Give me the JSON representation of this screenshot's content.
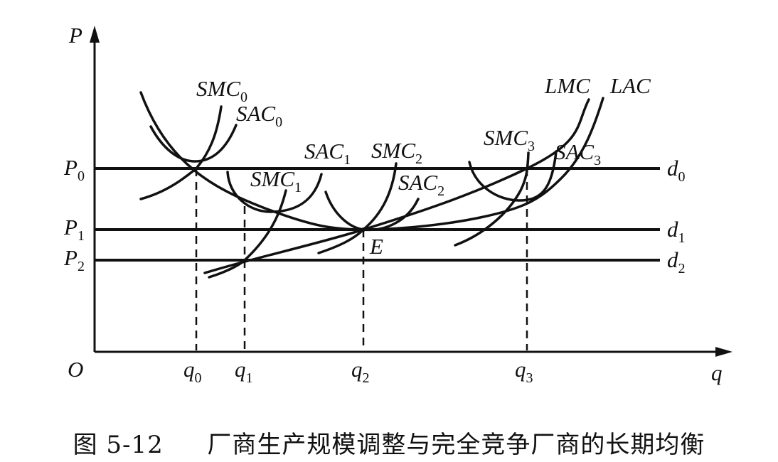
{
  "axes": {
    "y_label": "P",
    "x_label": "q",
    "origin_label": "O"
  },
  "price_levels": [
    {
      "base": "P",
      "sub": "0",
      "demand_base": "d",
      "demand_sub": "0"
    },
    {
      "base": "P",
      "sub": "1",
      "demand_base": "d",
      "demand_sub": "1"
    },
    {
      "base": "P",
      "sub": "2",
      "demand_base": "d",
      "demand_sub": "2"
    }
  ],
  "quantities": [
    {
      "base": "q",
      "sub": "0"
    },
    {
      "base": "q",
      "sub": "1"
    },
    {
      "base": "q",
      "sub": "2"
    },
    {
      "base": "q",
      "sub": "3"
    }
  ],
  "curve_labels": {
    "smc0": {
      "base": "SMC",
      "sub": "0"
    },
    "sac0": {
      "base": "SAC",
      "sub": "0"
    },
    "sac1": {
      "base": "SAC",
      "sub": "1"
    },
    "smc1": {
      "base": "SMC",
      "sub": "1"
    },
    "smc2": {
      "base": "SMC",
      "sub": "2"
    },
    "sac2": {
      "base": "SAC",
      "sub": "2"
    },
    "smc3": {
      "base": "SMC",
      "sub": "3"
    },
    "sac3": {
      "base": "SAC",
      "sub": "3"
    },
    "lmc": "LMC",
    "lac": "LAC"
  },
  "point_label": "E",
  "caption": {
    "number": "图 5-12",
    "title": "厂商生产规模调整与完全竞争厂商的长期均衡"
  }
}
